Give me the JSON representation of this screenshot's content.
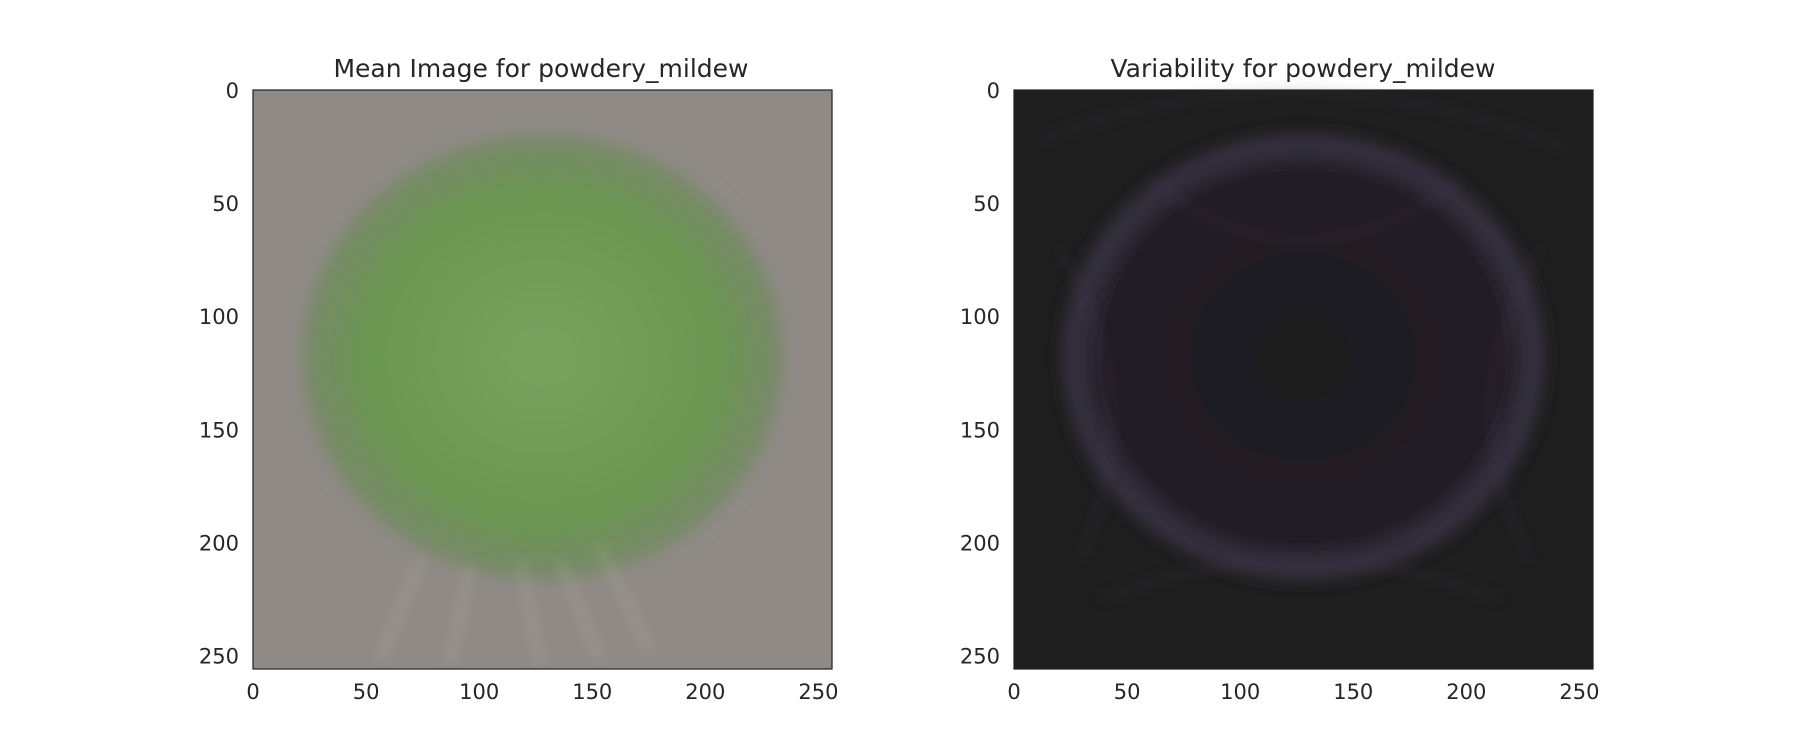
{
  "chart_data": [
    {
      "type": "heatmap",
      "title": "Mean Image for powdery_mildew",
      "xlabel": "",
      "ylabel": "",
      "image_size": [
        256,
        256
      ],
      "xlim": [
        0,
        256
      ],
      "ylim": [
        256,
        0
      ],
      "xticks": [
        0,
        50,
        100,
        150,
        200,
        250
      ],
      "yticks": [
        0,
        50,
        100,
        150,
        200,
        250
      ],
      "background_color": "#8f8a86",
      "subject": {
        "description": "green leaf blob",
        "color": "#6f9a52",
        "center": [
          128,
          118
        ],
        "radii": [
          112,
          96
        ]
      },
      "grid": false
    },
    {
      "type": "heatmap",
      "title": "Variability for powdery_mildew",
      "xlabel": "",
      "ylabel": "",
      "image_size": [
        256,
        256
      ],
      "xlim": [
        0,
        256
      ],
      "ylim": [
        256,
        0
      ],
      "xticks": [
        0,
        50,
        100,
        150,
        200,
        250
      ],
      "yticks": [
        0,
        50,
        100,
        150,
        200,
        250
      ],
      "background_color": "#1e1e1e",
      "subject": {
        "description": "faint purple leaf outlines",
        "color": "#4a3f58",
        "center": [
          128,
          118
        ],
        "radii": [
          112,
          96
        ]
      },
      "grid": false
    }
  ]
}
